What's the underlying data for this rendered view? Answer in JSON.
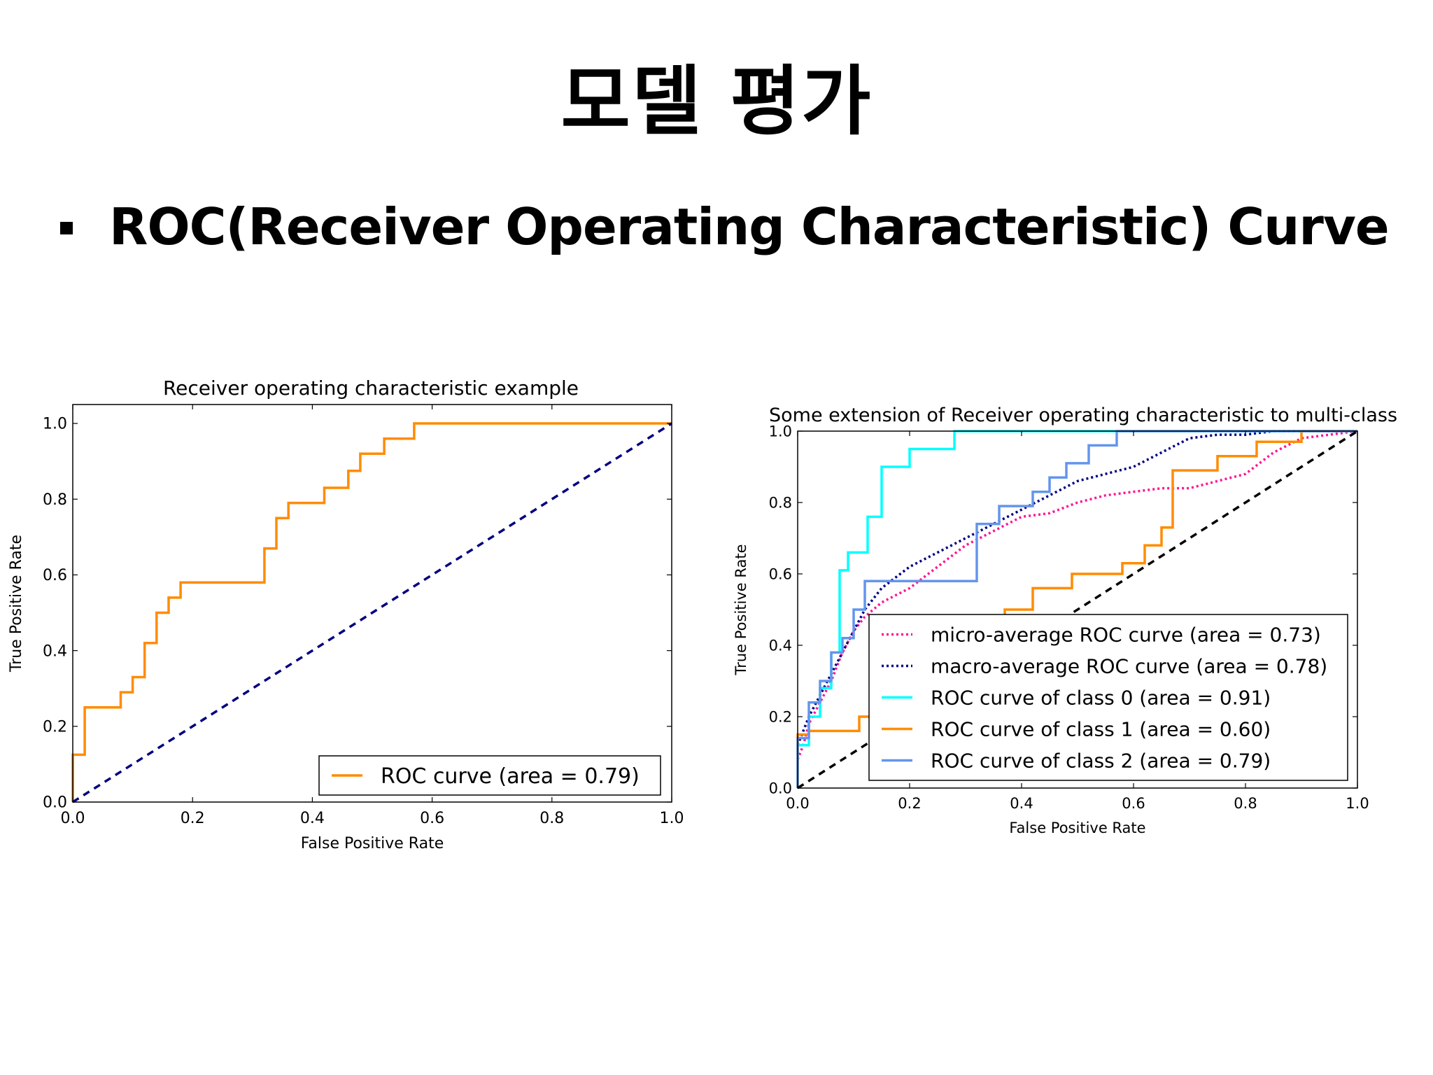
{
  "slide": {
    "title": "모델 평가",
    "bullet": "ROC(Receiver Operating Characteristic) Curve"
  },
  "colors": {
    "orange": "#ff8c00",
    "navy": "#000080",
    "cyan": "#00ffff",
    "cornflower": "#6495ed",
    "deeppink": "#ff1493",
    "black": "#000000"
  },
  "chart_data": [
    {
      "type": "line",
      "title": "Receiver operating characteristic example",
      "xlabel": "False Positive Rate",
      "ylabel": "True Positive Rate",
      "xlim": [
        0.0,
        1.0
      ],
      "ylim": [
        0.0,
        1.05
      ],
      "xticks": [
        "0.0",
        "0.2",
        "0.4",
        "0.6",
        "0.8",
        "1.0"
      ],
      "yticks": [
        "0.0",
        "0.2",
        "0.4",
        "0.6",
        "0.8",
        "1.0"
      ],
      "legend_position": "lower-right",
      "series": [
        {
          "name": "ROC curve (area = 0.79)",
          "color": "#ff8c00",
          "style": "solid",
          "x": [
            0.0,
            0.0,
            0.02,
            0.02,
            0.08,
            0.08,
            0.1,
            0.1,
            0.12,
            0.12,
            0.14,
            0.14,
            0.16,
            0.16,
            0.18,
            0.18,
            0.32,
            0.32,
            0.34,
            0.34,
            0.36,
            0.36,
            0.42,
            0.42,
            0.46,
            0.46,
            0.48,
            0.48,
            0.52,
            0.52,
            0.57,
            0.57,
            1.0
          ],
          "y": [
            0.0,
            0.125,
            0.125,
            0.25,
            0.25,
            0.29,
            0.29,
            0.33,
            0.33,
            0.42,
            0.42,
            0.5,
            0.5,
            0.54,
            0.54,
            0.58,
            0.58,
            0.67,
            0.67,
            0.75,
            0.75,
            0.79,
            0.79,
            0.83,
            0.83,
            0.875,
            0.875,
            0.92,
            0.92,
            0.96,
            0.96,
            1.0,
            1.0
          ]
        },
        {
          "name": "",
          "color": "#000080",
          "style": "dashed",
          "x": [
            0.0,
            1.0
          ],
          "y": [
            0.0,
            1.0
          ]
        }
      ]
    },
    {
      "type": "line",
      "title": "Some extension of Receiver operating characteristic to multi-class",
      "xlabel": "False Positive Rate",
      "ylabel": "True Positive Rate",
      "xlim": [
        0.0,
        1.0
      ],
      "ylim": [
        0.0,
        1.0
      ],
      "xticks": [
        "0.0",
        "0.2",
        "0.4",
        "0.6",
        "0.8",
        "1.0"
      ],
      "yticks": [
        "0.0",
        "0.2",
        "0.4",
        "0.6",
        "0.8",
        "1.0"
      ],
      "legend_position": "lower-right",
      "series": [
        {
          "name": "micro-average ROC curve (area = 0.73)",
          "color": "#ff1493",
          "style": "dotted",
          "x": [
            0.0,
            0.01,
            0.02,
            0.04,
            0.06,
            0.08,
            0.1,
            0.12,
            0.15,
            0.2,
            0.25,
            0.3,
            0.35,
            0.4,
            0.45,
            0.5,
            0.55,
            0.6,
            0.65,
            0.7,
            0.75,
            0.8,
            0.85,
            0.9,
            0.95,
            1.0
          ],
          "y": [
            0.08,
            0.12,
            0.18,
            0.24,
            0.3,
            0.38,
            0.44,
            0.48,
            0.52,
            0.56,
            0.62,
            0.68,
            0.72,
            0.76,
            0.77,
            0.8,
            0.82,
            0.83,
            0.84,
            0.84,
            0.86,
            0.88,
            0.94,
            0.98,
            0.99,
            1.0
          ]
        },
        {
          "name": "macro-average ROC curve (area = 0.78)",
          "color": "#000080",
          "style": "dotted",
          "x": [
            0.0,
            0.01,
            0.02,
            0.04,
            0.06,
            0.08,
            0.1,
            0.12,
            0.15,
            0.2,
            0.25,
            0.3,
            0.35,
            0.4,
            0.45,
            0.5,
            0.55,
            0.6,
            0.65,
            0.7,
            0.75,
            0.8,
            0.85,
            0.9,
            0.95,
            1.0
          ],
          "y": [
            0.12,
            0.16,
            0.2,
            0.26,
            0.32,
            0.38,
            0.44,
            0.5,
            0.56,
            0.62,
            0.66,
            0.7,
            0.74,
            0.78,
            0.82,
            0.86,
            0.88,
            0.9,
            0.94,
            0.98,
            0.99,
            0.99,
            1.0,
            1.0,
            1.0,
            1.0
          ]
        },
        {
          "name": "ROC curve of class 0 (area = 0.91)",
          "color": "#00ffff",
          "style": "solid",
          "x": [
            0.0,
            0.0,
            0.02,
            0.02,
            0.04,
            0.04,
            0.06,
            0.06,
            0.075,
            0.075,
            0.09,
            0.09,
            0.125,
            0.125,
            0.15,
            0.15,
            0.2,
            0.2,
            0.28,
            0.28,
            1.0
          ],
          "y": [
            0.0,
            0.12,
            0.12,
            0.2,
            0.2,
            0.28,
            0.28,
            0.38,
            0.38,
            0.61,
            0.61,
            0.66,
            0.66,
            0.76,
            0.76,
            0.9,
            0.9,
            0.95,
            0.95,
            1.0,
            1.0
          ]
        },
        {
          "name": "ROC curve of class 1 (area = 0.60)",
          "color": "#ff8c00",
          "style": "solid",
          "x": [
            0.0,
            0.0,
            0.02,
            0.02,
            0.11,
            0.11,
            0.13,
            0.13,
            0.37,
            0.37,
            0.42,
            0.42,
            0.49,
            0.49,
            0.58,
            0.58,
            0.62,
            0.62,
            0.65,
            0.65,
            0.67,
            0.67,
            0.75,
            0.75,
            0.82,
            0.82,
            0.9,
            0.9,
            1.0
          ],
          "y": [
            0.0,
            0.15,
            0.15,
            0.16,
            0.16,
            0.2,
            0.2,
            0.2,
            0.2,
            0.5,
            0.5,
            0.56,
            0.56,
            0.6,
            0.6,
            0.63,
            0.63,
            0.68,
            0.68,
            0.73,
            0.73,
            0.89,
            0.89,
            0.93,
            0.93,
            0.97,
            0.97,
            1.0,
            1.0
          ]
        },
        {
          "name": "ROC curve of class 2 (area = 0.79)",
          "color": "#6495ed",
          "style": "solid",
          "x": [
            0.0,
            0.0,
            0.02,
            0.02,
            0.04,
            0.04,
            0.06,
            0.06,
            0.08,
            0.08,
            0.1,
            0.1,
            0.12,
            0.12,
            0.18,
            0.18,
            0.32,
            0.32,
            0.36,
            0.36,
            0.42,
            0.42,
            0.45,
            0.45,
            0.48,
            0.48,
            0.52,
            0.52,
            0.57,
            0.57,
            1.0
          ],
          "y": [
            0.0,
            0.14,
            0.14,
            0.24,
            0.24,
            0.3,
            0.3,
            0.38,
            0.38,
            0.42,
            0.42,
            0.5,
            0.5,
            0.58,
            0.58,
            0.58,
            0.58,
            0.74,
            0.74,
            0.79,
            0.79,
            0.83,
            0.83,
            0.87,
            0.87,
            0.91,
            0.91,
            0.96,
            0.96,
            1.0,
            1.0
          ]
        },
        {
          "name": "",
          "color": "#000000",
          "style": "dashed",
          "x": [
            0.0,
            1.0
          ],
          "y": [
            0.0,
            1.0
          ]
        }
      ]
    }
  ]
}
